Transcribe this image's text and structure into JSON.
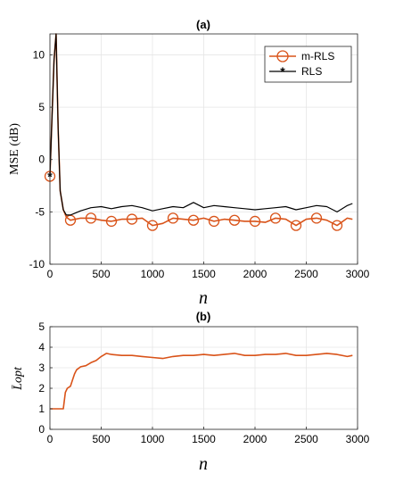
{
  "chart_data": [
    {
      "panel": "a",
      "type": "line",
      "title": "(a)",
      "xlabel": "n",
      "ylabel": "MSE (dB)",
      "xlim": [
        0,
        3000
      ],
      "ylim": [
        -10,
        12
      ],
      "xticks": [
        "0",
        "500",
        "1000",
        "1500",
        "2000",
        "2500",
        "3000"
      ],
      "yticks": [
        "-10",
        "-5",
        "0",
        "5",
        "10"
      ],
      "grid": true,
      "legend_position": "top-right",
      "series": [
        {
          "name": "m-RLS",
          "color": "#d95319",
          "marker": "circle",
          "x": [
            0,
            20,
            40,
            60,
            80,
            100,
            130,
            160,
            200,
            300,
            400,
            500,
            600,
            700,
            800,
            900,
            1000,
            1100,
            1200,
            1300,
            1400,
            1500,
            1600,
            1700,
            1800,
            1900,
            2000,
            2100,
            2200,
            2300,
            2400,
            2500,
            2600,
            2700,
            2800,
            2900,
            2950
          ],
          "values": [
            -1.6,
            4.0,
            9.5,
            12.0,
            3.0,
            -3.0,
            -4.8,
            -5.5,
            -5.8,
            -5.6,
            -5.6,
            -5.8,
            -5.9,
            -5.7,
            -5.7,
            -5.6,
            -6.3,
            -6.1,
            -5.6,
            -5.7,
            -5.8,
            -5.6,
            -5.9,
            -5.7,
            -5.8,
            -5.9,
            -5.9,
            -6.0,
            -5.6,
            -5.7,
            -6.3,
            -5.7,
            -5.6,
            -5.8,
            -6.3,
            -5.6,
            -5.7
          ],
          "marker_x": [
            0,
            200,
            400,
            600,
            800,
            1000,
            1200,
            1400,
            1600,
            1800,
            2000,
            2200,
            2400,
            2600,
            2800
          ]
        },
        {
          "name": "RLS",
          "color": "#000000",
          "marker": "asterisk",
          "x": [
            0,
            20,
            40,
            60,
            80,
            100,
            130,
            160,
            200,
            300,
            400,
            500,
            600,
            700,
            800,
            900,
            1000,
            1100,
            1200,
            1300,
            1400,
            1500,
            1600,
            1700,
            1800,
            1900,
            2000,
            2100,
            2200,
            2300,
            2400,
            2500,
            2600,
            2700,
            2800,
            2900,
            2950
          ],
          "values": [
            -1.6,
            4.0,
            9.5,
            12.0,
            3.0,
            -3.0,
            -4.8,
            -5.3,
            -5.3,
            -4.9,
            -4.6,
            -4.5,
            -4.7,
            -4.5,
            -4.4,
            -4.6,
            -4.9,
            -4.7,
            -4.5,
            -4.6,
            -4.1,
            -4.6,
            -4.4,
            -4.5,
            -4.6,
            -4.7,
            -4.8,
            -4.7,
            -4.6,
            -4.5,
            -4.8,
            -4.6,
            -4.4,
            -4.5,
            -5.0,
            -4.4,
            -4.2
          ],
          "marker_x": [
            0
          ]
        }
      ]
    },
    {
      "panel": "b",
      "type": "line",
      "title": "(b)",
      "xlabel": "n",
      "ylabel": "L̄opt",
      "xlim": [
        0,
        3000
      ],
      "ylim": [
        0,
        5
      ],
      "xticks": [
        "0",
        "500",
        "1000",
        "1500",
        "2000",
        "2500",
        "3000"
      ],
      "yticks": [
        "0",
        "1",
        "2",
        "3",
        "4",
        "5"
      ],
      "grid": true,
      "series": [
        {
          "color": "#d95319",
          "x": [
            0,
            100,
            130,
            150,
            170,
            200,
            220,
            240,
            260,
            300,
            350,
            400,
            450,
            500,
            550,
            600,
            700,
            800,
            900,
            1000,
            1100,
            1200,
            1300,
            1400,
            1500,
            1600,
            1700,
            1800,
            1900,
            2000,
            2100,
            2200,
            2300,
            2400,
            2500,
            2600,
            2700,
            2800,
            2900,
            2950
          ],
          "values": [
            1.0,
            1.0,
            1.0,
            1.8,
            2.0,
            2.1,
            2.4,
            2.7,
            2.9,
            3.05,
            3.1,
            3.25,
            3.35,
            3.55,
            3.7,
            3.65,
            3.6,
            3.6,
            3.55,
            3.5,
            3.45,
            3.55,
            3.6,
            3.6,
            3.65,
            3.6,
            3.65,
            3.7,
            3.6,
            3.6,
            3.65,
            3.65,
            3.7,
            3.6,
            3.6,
            3.65,
            3.7,
            3.65,
            3.55,
            3.6
          ]
        }
      ]
    }
  ]
}
